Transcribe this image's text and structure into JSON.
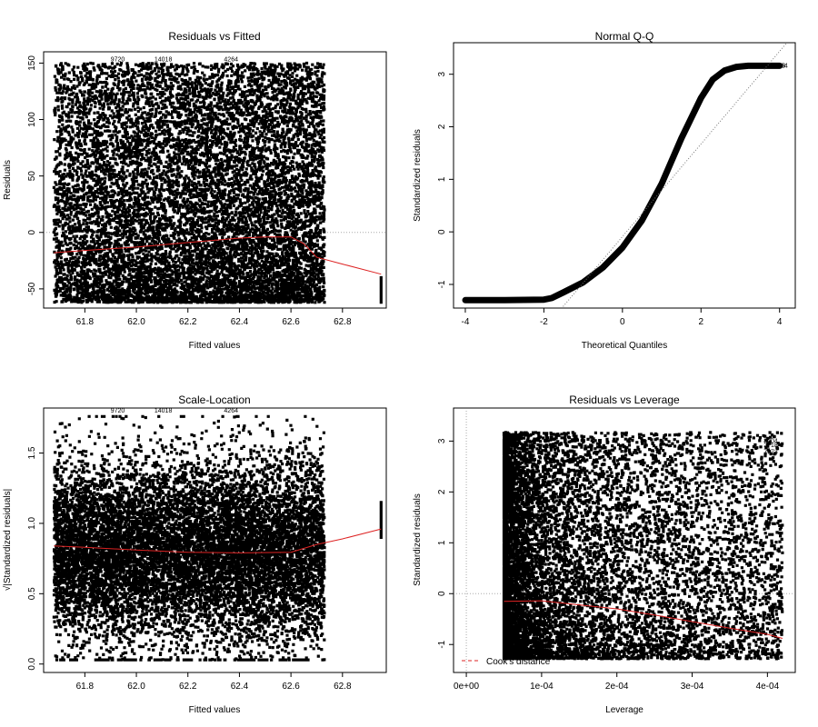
{
  "chart_data": [
    {
      "id": "resid-fitted",
      "type": "scatter",
      "title": "Residuals vs Fitted",
      "xlabel": "Fitted values",
      "ylabel": "Residuals",
      "xlim": [
        61.64,
        62.97
      ],
      "ylim": [
        -67,
        160
      ],
      "xticks": [
        61.8,
        62.0,
        62.2,
        62.4,
        62.6,
        62.8
      ],
      "xtick_labels": [
        "61.8",
        "62.0",
        "62.2",
        "62.4",
        "62.6",
        "62.8"
      ],
      "yticks": [
        -50,
        0,
        50,
        100,
        150
      ],
      "ytick_labels": [
        "-50",
        "0",
        "50",
        "100",
        "150"
      ],
      "refline": {
        "y": 0
      },
      "smooth": {
        "x": [
          61.68,
          61.8,
          62.0,
          62.2,
          62.4,
          62.5,
          62.6,
          62.65,
          62.7,
          62.8,
          62.95
        ],
        "y": [
          -18,
          -16,
          -13,
          -9,
          -5,
          -4,
          -4,
          -10,
          -22,
          -28,
          -37
        ]
      },
      "point_labels": [
        {
          "text": "9720",
          "x": 61.9,
          "y": 153
        },
        {
          "text": "14018",
          "x": 62.07,
          "y": 153
        },
        {
          "text": "4264",
          "x": 62.34,
          "y": 153
        }
      ],
      "grid": false,
      "legend": "none"
    },
    {
      "id": "normal-qq",
      "type": "scatter",
      "title": "Normal Q-Q",
      "xlabel": "Theoretical Quantiles",
      "ylabel": "Standardized residuals",
      "xlim": [
        -4.3,
        4.4
      ],
      "ylim": [
        -1.45,
        3.6
      ],
      "xticks": [
        -4,
        -2,
        0,
        2,
        4
      ],
      "xtick_labels": [
        "-4",
        "-2",
        "0",
        "2",
        "4"
      ],
      "yticks": [
        -1,
        0,
        1,
        2,
        3
      ],
      "ytick_labels": [
        "-1",
        "0",
        "1",
        "2",
        "3"
      ],
      "qq_curve": {
        "x": [
          -4.0,
          -3.0,
          -2.0,
          -1.8,
          -1.5,
          -1.0,
          -0.5,
          0.0,
          0.5,
          1.0,
          1.5,
          2.0,
          2.3,
          2.6,
          2.9,
          3.2,
          4.0
        ],
        "y": [
          -1.3,
          -1.3,
          -1.29,
          -1.26,
          -1.15,
          -0.96,
          -0.68,
          -0.3,
          0.22,
          0.92,
          1.78,
          2.55,
          2.9,
          3.07,
          3.14,
          3.16,
          3.16
        ]
      },
      "refline": {
        "x": [
          -1.6,
          4.3
        ],
        "y": [
          -1.5,
          3.7
        ]
      },
      "point_labels": [
        {
          "text": "9720",
          "x": 3.55,
          "y": 3.16
        },
        {
          "text": "14018",
          "x": 3.7,
          "y": 3.16
        },
        {
          "text": "4264",
          "x": 3.85,
          "y": 3.16
        }
      ],
      "grid": false,
      "legend": "none"
    },
    {
      "id": "scale-location",
      "type": "scatter",
      "title": "Scale-Location",
      "xlabel": "Fitted values",
      "ylabel": "√|Standardized residuals|",
      "xlim": [
        61.64,
        62.97
      ],
      "ylim": [
        -0.06,
        1.82
      ],
      "xticks": [
        61.8,
        62.0,
        62.2,
        62.4,
        62.6,
        62.8
      ],
      "xtick_labels": [
        "61.8",
        "62.0",
        "62.2",
        "62.4",
        "62.6",
        "62.8"
      ],
      "yticks": [
        0.0,
        0.5,
        1.0,
        1.5
      ],
      "ytick_labels": [
        "0.0",
        "0.5",
        "1.0",
        "1.5"
      ],
      "smooth": {
        "x": [
          61.68,
          61.8,
          62.0,
          62.2,
          62.4,
          62.6,
          62.7,
          62.8,
          62.95
        ],
        "y": [
          0.84,
          0.83,
          0.81,
          0.795,
          0.79,
          0.795,
          0.85,
          0.89,
          0.96
        ]
      },
      "point_labels": [
        {
          "text": "9720",
          "x": 61.9,
          "y": 1.8
        },
        {
          "text": "14018",
          "x": 62.07,
          "y": 1.8
        },
        {
          "text": "4264",
          "x": 62.34,
          "y": 1.8
        }
      ],
      "grid": false,
      "legend": "none"
    },
    {
      "id": "resid-leverage",
      "type": "scatter",
      "title": "Residuals vs Leverage",
      "xlabel": "Leverage",
      "ylabel": "Standardized residuals",
      "xlim": [
        -1.7e-05,
        0.000437
      ],
      "ylim": [
        -1.55,
        3.65
      ],
      "xticks": [
        0,
        0.0001,
        0.0002,
        0.0003,
        0.0004
      ],
      "xtick_labels": [
        "0e+00",
        "1e-04",
        "2e-04",
        "3e-04",
        "4e-04"
      ],
      "yticks": [
        -1,
        0,
        1,
        2,
        3
      ],
      "ytick_labels": [
        "-1",
        "0",
        "1",
        "2",
        "3"
      ],
      "refline": {
        "y": 0,
        "x": 0
      },
      "smooth": {
        "x": [
          5e-05,
          0.0001,
          0.00015,
          0.0002,
          0.00025,
          0.0003,
          0.00035,
          0.0004,
          0.00042
        ],
        "y": [
          -0.15,
          -0.14,
          -0.22,
          -0.3,
          -0.42,
          -0.55,
          -0.68,
          -0.8,
          -0.88
        ]
      },
      "point_labels": [
        {
          "text": "8004",
          "x": 0.000395,
          "y": 3.0
        },
        {
          "text": "2718",
          "x": 0.000395,
          "y": 2.92
        },
        {
          "text": "7673",
          "x": 0.000395,
          "y": 2.78
        }
      ],
      "legend_label": "Cook's distance",
      "grid": false,
      "legend": "bottom-left"
    }
  ],
  "colors": {
    "points": "#000000",
    "smooth": "#dd2222",
    "refline": "#aaaaaa",
    "axes": "#000000"
  }
}
